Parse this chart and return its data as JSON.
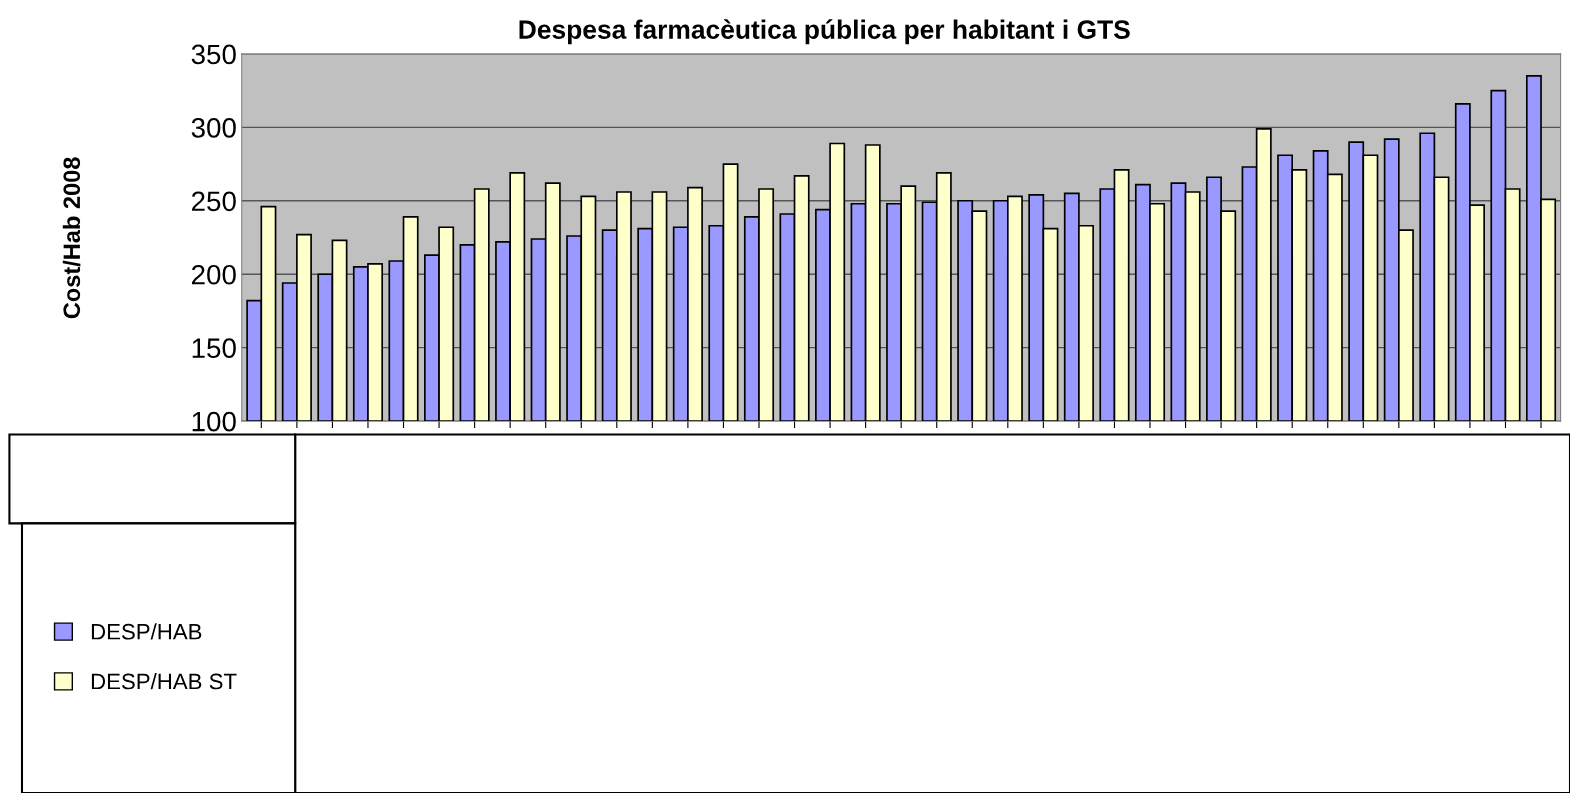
{
  "chart_data": {
    "type": "bar",
    "title": "Despesa farmacèutica pública per habitant i GTS",
    "ylabel": "Cost/Hab 2008",
    "categories": [
      null,
      null,
      null,
      null,
      null,
      null,
      null,
      null,
      null,
      null,
      null,
      null,
      null,
      null,
      null,
      null,
      null,
      null,
      null,
      null,
      null,
      null,
      null,
      null,
      null,
      null,
      null,
      null,
      null,
      null,
      null,
      null,
      null,
      null,
      null,
      null,
      null
    ],
    "series": [
      {
        "name": "DESP/HAB",
        "color": "#9999ff",
        "values": [
          182,
          194,
          200,
          205,
          209,
          213,
          220,
          222,
          224,
          226,
          230,
          231,
          232,
          233,
          239,
          241,
          244,
          248,
          248,
          249,
          250,
          250,
          254,
          255,
          258,
          261,
          262,
          266,
          273,
          281,
          284,
          290,
          292,
          296,
          316,
          325,
          335
        ]
      },
      {
        "name": "DESP/HAB ST",
        "color": "#ffffcc",
        "values": [
          246,
          227,
          223,
          207,
          239,
          232,
          258,
          269,
          262,
          253,
          256,
          256,
          259,
          275,
          258,
          267,
          289,
          288,
          260,
          269,
          243,
          253,
          231,
          233,
          271,
          248,
          256,
          243,
          299,
          271,
          268,
          281,
          230,
          266,
          247,
          258,
          251
        ]
      }
    ],
    "ylim": [
      100,
      350
    ],
    "yticks": [
      100,
      150,
      200,
      250,
      300,
      350
    ],
    "grid": "y",
    "legend": "bottom left",
    "tick_labels": "y"
  }
}
